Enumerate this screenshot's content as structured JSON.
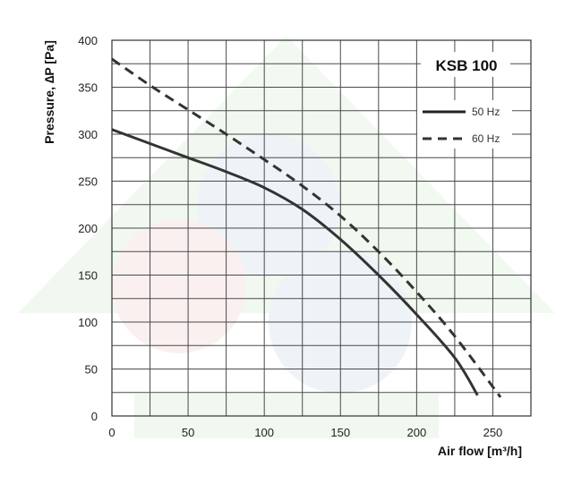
{
  "chart_data": {
    "type": "line",
    "model_label": "KSB 100",
    "ylabel": "Pressure, ∆P [Pa]",
    "xlabel": "Air flow [m³/h]",
    "xlim": [
      0,
      275
    ],
    "ylim": [
      0,
      400
    ],
    "x_ticks": [
      "0",
      "50",
      "100",
      "150",
      "200",
      "250"
    ],
    "y_ticks": [
      "0",
      "50",
      "100",
      "150",
      "200",
      "250",
      "300",
      "350",
      "400"
    ],
    "x_grid_step": 25,
    "y_grid_step": 25,
    "grid": true,
    "legend_position": "top-right",
    "colors": {
      "line": "#333333",
      "grid": "#4a4a4a",
      "watermark_blue": "#3a6fb5",
      "watermark_red": "#d9534f",
      "watermark_green": "#4caf50"
    },
    "series": [
      {
        "name": "50 Hz",
        "style": "solid",
        "x": [
          0,
          25,
          50,
          75,
          100,
          125,
          150,
          175,
          200,
          225,
          240
        ],
        "y": [
          305,
          290,
          275,
          260,
          243,
          220,
          188,
          150,
          108,
          62,
          22
        ]
      },
      {
        "name": "60 Hz",
        "style": "dashed",
        "x": [
          0,
          25,
          50,
          75,
          100,
          125,
          150,
          175,
          200,
          225,
          255
        ],
        "y": [
          380,
          352,
          326,
          300,
          273,
          245,
          213,
          175,
          132,
          85,
          20
        ]
      }
    ]
  }
}
